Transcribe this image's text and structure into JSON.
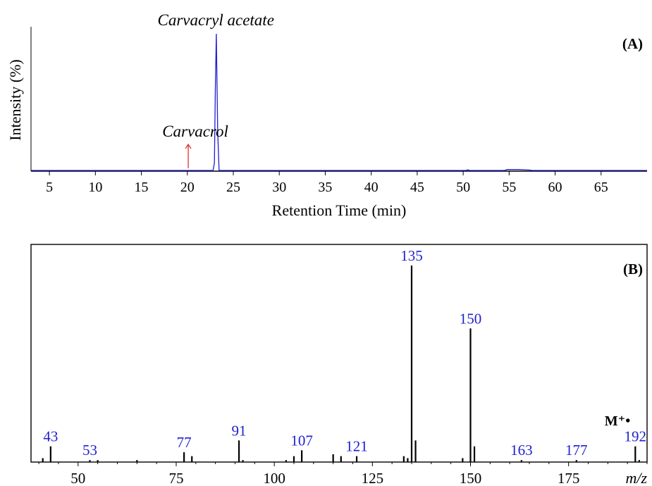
{
  "chart_data": [
    {
      "type": "line",
      "panel_label": "(A)",
      "xlabel": "Retention Time (min)",
      "ylabel": "Intensity (%)",
      "xlim": [
        3,
        70
      ],
      "ylim": [
        0,
        100
      ],
      "x_ticks": [
        5,
        10,
        15,
        20,
        25,
        30,
        35,
        40,
        45,
        50,
        55,
        60,
        65
      ],
      "series_color": "#1f1fd0",
      "series": [
        {
          "x": [
            3.0,
            10.0,
            20.0,
            22.8,
            22.95,
            23.05,
            23.15,
            23.3,
            23.45,
            30.0,
            50.3,
            50.5,
            50.7,
            54.5,
            54.8,
            56.0,
            57.2,
            57.5,
            65.0,
            70.0
          ],
          "values": [
            0.5,
            0.5,
            0.5,
            0.5,
            6.0,
            60.0,
            100.0,
            30.0,
            0.5,
            0.5,
            0.5,
            1.0,
            0.5,
            0.5,
            1.2,
            1.2,
            0.8,
            0.5,
            0.5,
            0.5
          ]
        }
      ],
      "annotations": [
        {
          "text": "Carvacryl acetate",
          "x": 23.1,
          "y": 100,
          "color": "#000000"
        },
        {
          "text": "Carvacrol",
          "x": 20.1,
          "y": 20,
          "color": "#000000",
          "arrow_color": "#e03030"
        }
      ]
    },
    {
      "type": "bar",
      "panel_label": "(B)",
      "xlabel": "m/z",
      "molecular_ion_label": "M⁺•",
      "xlim": [
        38,
        195
      ],
      "ylim": [
        0,
        100
      ],
      "x_ticks": [
        50,
        75,
        100,
        125,
        150,
        175
      ],
      "label_color": "#1f1fd0",
      "x": [
        41,
        43,
        53,
        55,
        65,
        77,
        79,
        91,
        92,
        103,
        105,
        107,
        115,
        117,
        121,
        133,
        134,
        135,
        136,
        148,
        150,
        151,
        163,
        177,
        192,
        193
      ],
      "values": [
        2,
        8,
        1,
        1,
        1,
        5,
        3,
        11,
        1,
        1,
        3,
        6,
        4,
        3,
        3,
        3,
        2,
        100,
        11,
        2,
        68,
        8,
        1,
        1,
        8,
        1
      ],
      "labels": [
        {
          "text": "43",
          "x": 43
        },
        {
          "text": "53",
          "x": 53
        },
        {
          "text": "77",
          "x": 77
        },
        {
          "text": "91",
          "x": 91
        },
        {
          "text": "107",
          "x": 107
        },
        {
          "text": "121",
          "x": 121
        },
        {
          "text": "135",
          "x": 135
        },
        {
          "text": "150",
          "x": 150
        },
        {
          "text": "163",
          "x": 163
        },
        {
          "text": "177",
          "x": 177
        },
        {
          "text": "192",
          "x": 192
        }
      ]
    }
  ]
}
